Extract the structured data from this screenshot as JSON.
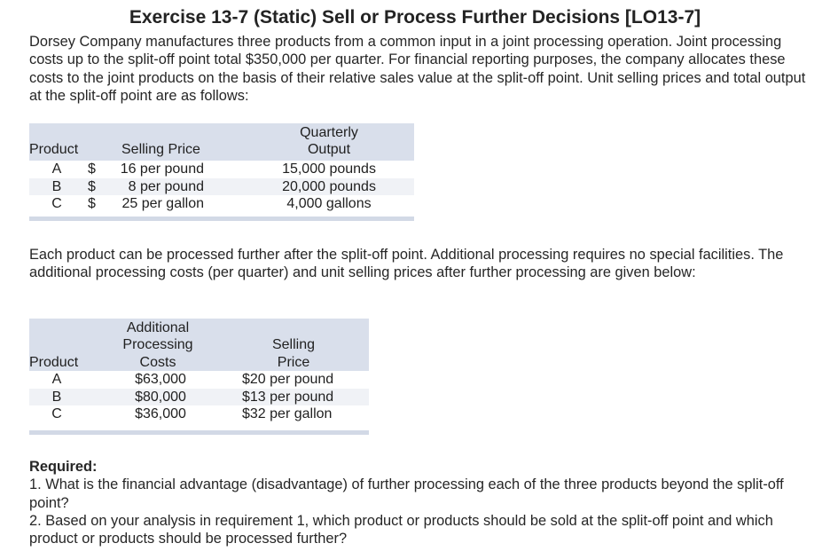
{
  "title": "Exercise 13-7 (Static) Sell or Process Further Decisions [LO13-7]",
  "paragraph1": "Dorsey Company manufactures three products from a common input in a joint processing operation. Joint processing costs up to the split-off point total $350,000 per quarter. For financial reporting purposes, the company allocates these costs to the joint products on the basis of their relative sales value at the split-off point. Unit selling prices and total output at the split-off point are as follows:",
  "table1": {
    "headers": {
      "product": "Product",
      "selling_price": "Selling Price",
      "output_line1": "Quarterly",
      "output_line2": "Output"
    },
    "rows": [
      {
        "product": "A",
        "dollar": "$",
        "price": "16 per pound",
        "output": "15,000 pounds"
      },
      {
        "product": "B",
        "dollar": "$",
        "price": "8 per pound",
        "output": "20,000 pounds"
      },
      {
        "product": "C",
        "dollar": "$",
        "price": "25 per gallon",
        "output": "4,000 gallons"
      }
    ]
  },
  "paragraph2": "Each product can be processed further after the split-off point. Additional processing requires no special facilities. The additional processing costs (per quarter) and unit selling prices after further processing are given below:",
  "table2": {
    "headers": {
      "product": "Product",
      "costs_line1": "Additional",
      "costs_line2": "Processing",
      "costs_line3": "Costs",
      "price_line1": "Selling",
      "price_line2": "Price"
    },
    "rows": [
      {
        "product": "A",
        "cost": "$63,000",
        "price": "$20 per pound"
      },
      {
        "product": "B",
        "cost": "$80,000",
        "price": "$13 per pound"
      },
      {
        "product": "C",
        "cost": "$36,000",
        "price": "$32 per gallon"
      }
    ]
  },
  "required": {
    "heading": "Required:",
    "item1": "1. What is the financial advantage (disadvantage) of further processing each of the three products beyond the split-off point?",
    "item2": "2. Based on your analysis in requirement 1, which product or products should be sold at the split-off point and which product or products should be processed further?"
  }
}
